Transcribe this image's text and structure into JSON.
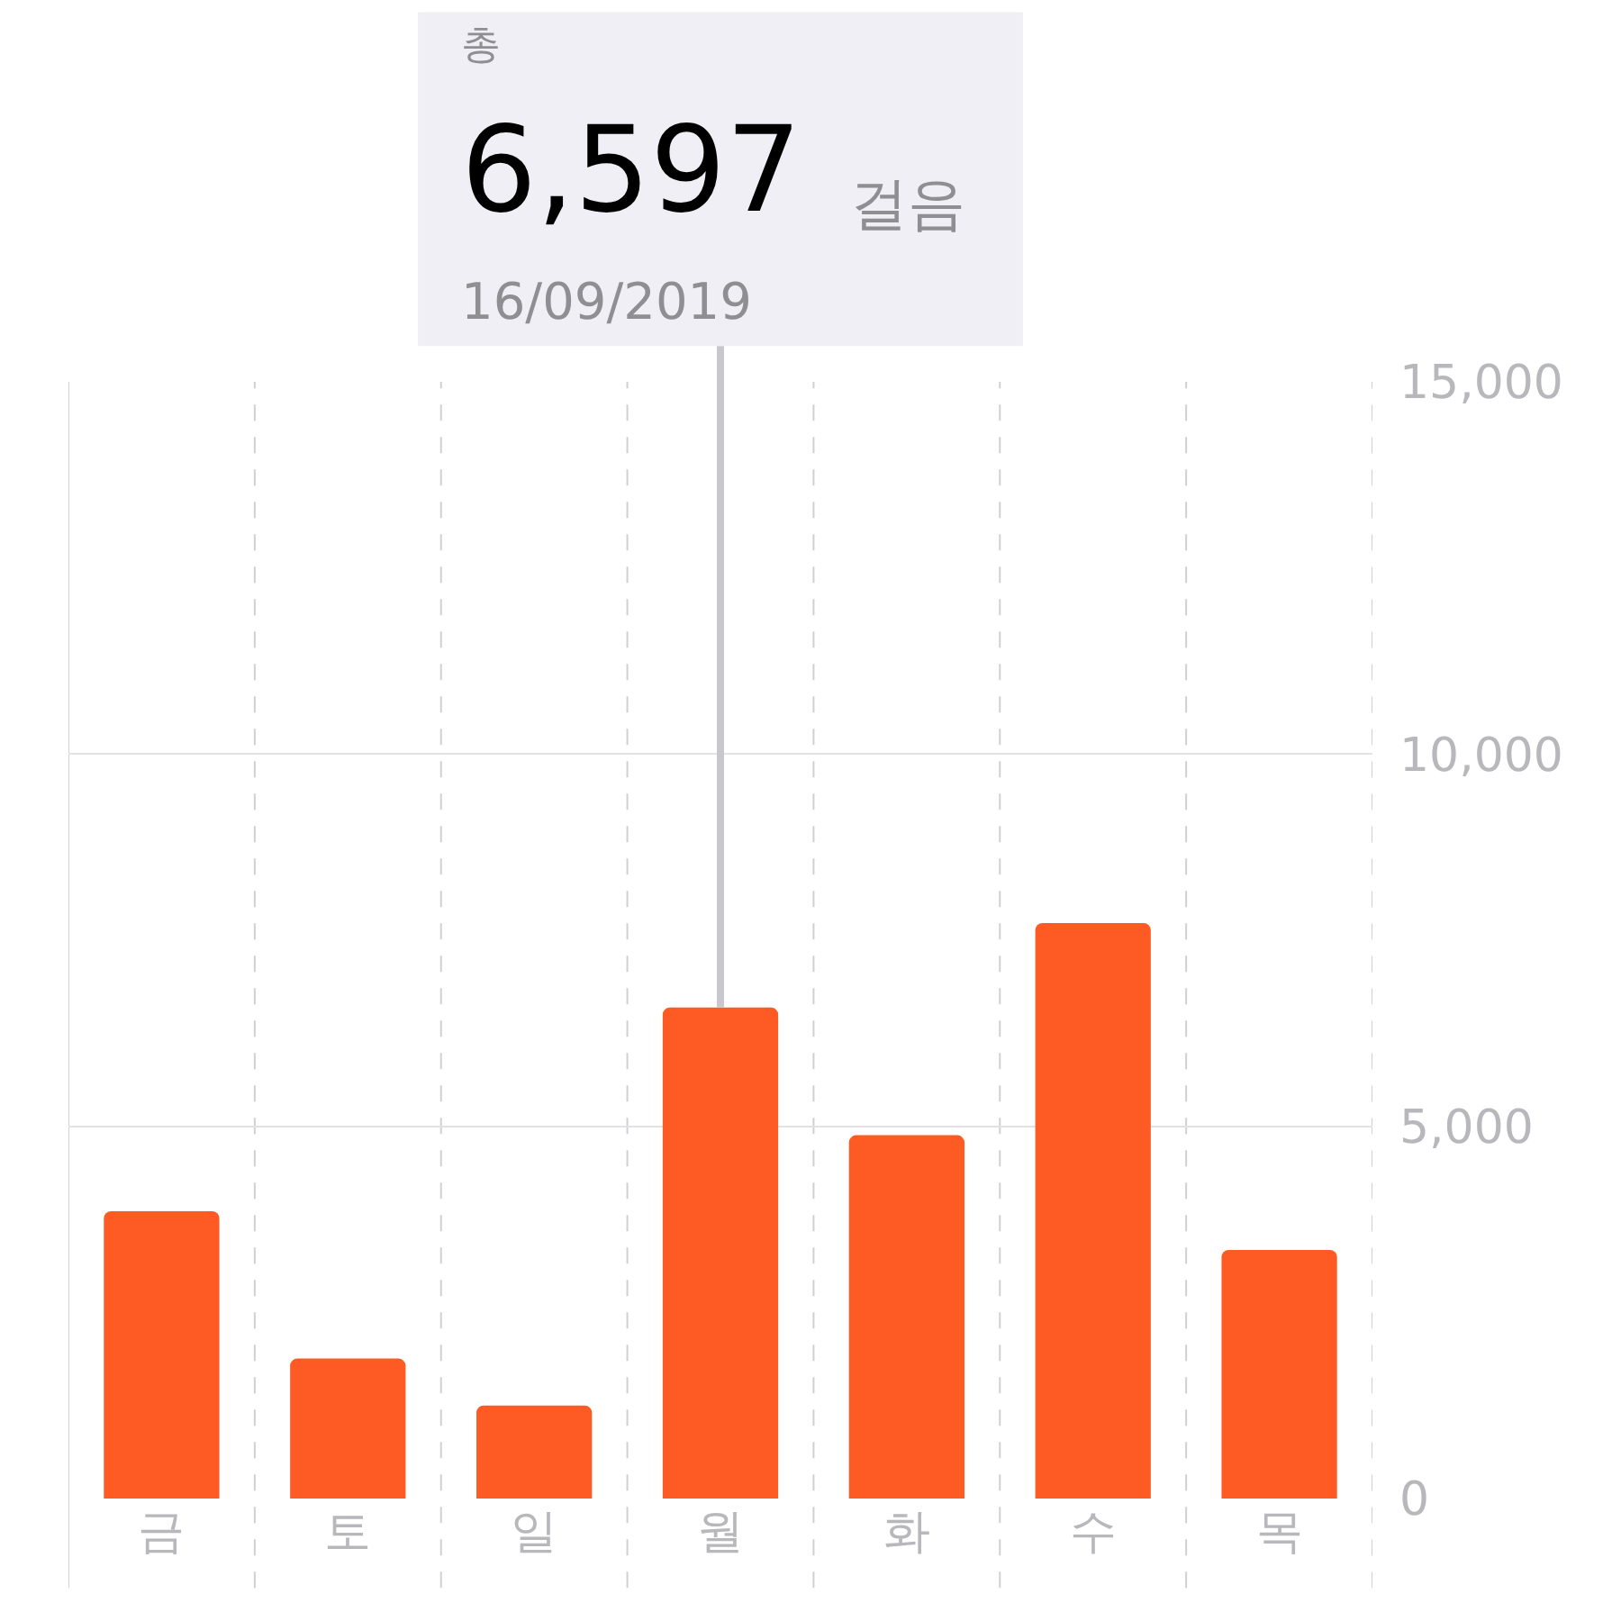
{
  "chart_data": {
    "type": "bar",
    "categories": [
      "금",
      "토",
      "일",
      "월",
      "화",
      "수",
      "목"
    ],
    "values": [
      3860,
      1880,
      1250,
      6597,
      4880,
      7730,
      3340
    ],
    "color": "#fe5b24",
    "ylim": [
      0,
      15000
    ],
    "yticks": [
      0,
      {
        "value": 5000,
        "label": "5,000"
      },
      {
        "value": 10000,
        "label": "10,000"
      },
      {
        "value": 15000,
        "label": "15,000"
      }
    ],
    "grid": true,
    "annotations": [
      "총",
      {
        "text": "6,597",
        "x": "월",
        "y": 6597
      },
      "걸음",
      "16/09/2019"
    ]
  }
}
